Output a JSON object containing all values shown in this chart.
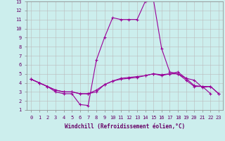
{
  "xlabel": "Windchill (Refroidissement éolien,°C)",
  "background_color": "#cceeed",
  "line_color": "#990099",
  "grid_color": "#bbbbbb",
  "xlim": [
    -0.5,
    23.5
  ],
  "ylim": [
    1,
    13
  ],
  "xticks": [
    0,
    1,
    2,
    3,
    4,
    5,
    6,
    7,
    8,
    9,
    10,
    11,
    12,
    13,
    14,
    15,
    16,
    17,
    18,
    19,
    20,
    21,
    22,
    23
  ],
  "yticks": [
    1,
    2,
    3,
    4,
    5,
    6,
    7,
    8,
    9,
    10,
    11,
    12,
    13
  ],
  "series": [
    {
      "x": [
        0,
        1,
        2,
        3,
        4,
        5,
        6,
        7,
        8,
        9,
        10,
        11,
        12,
        13,
        14,
        15,
        16,
        17,
        18,
        19,
        20,
        21,
        22
      ],
      "y": [
        4.4,
        4.0,
        3.6,
        3.0,
        2.8,
        2.8,
        1.6,
        1.5,
        6.5,
        9.0,
        11.2,
        11.0,
        11.0,
        11.0,
        13.0,
        13.2,
        7.8,
        5.2,
        5.0,
        4.3,
        3.6,
        3.6,
        2.8
      ]
    },
    {
      "x": [
        0,
        1,
        2,
        3,
        4,
        5,
        6,
        7,
        8,
        9,
        10,
        11,
        12,
        13,
        14,
        15,
        16,
        17,
        18,
        19,
        20,
        21,
        22,
        23
      ],
      "y": [
        4.4,
        4.0,
        3.6,
        3.2,
        3.0,
        3.0,
        2.8,
        2.8,
        3.0,
        3.8,
        4.2,
        4.4,
        4.5,
        4.6,
        4.8,
        5.0,
        4.8,
        5.0,
        5.0,
        4.5,
        3.7,
        3.6,
        3.6,
        2.8
      ]
    },
    {
      "x": [
        0,
        1,
        2,
        3,
        4,
        5,
        6,
        7,
        8,
        9,
        10,
        11,
        12,
        13,
        14,
        15,
        16,
        17,
        18,
        19,
        20,
        21,
        22,
        23
      ],
      "y": [
        4.4,
        4.0,
        3.6,
        3.2,
        3.0,
        3.0,
        2.8,
        2.8,
        3.2,
        3.8,
        4.2,
        4.5,
        4.6,
        4.7,
        4.8,
        5.0,
        4.9,
        5.0,
        5.2,
        4.5,
        4.3,
        3.5,
        3.6,
        2.8
      ]
    }
  ],
  "xlabel_fontsize": 5.5,
  "xlabel_color": "#660066",
  "tick_labelsize": 5,
  "tick_color": "#660066",
  "spine_color": "#888888",
  "linewidth": 0.8,
  "markersize": 3
}
